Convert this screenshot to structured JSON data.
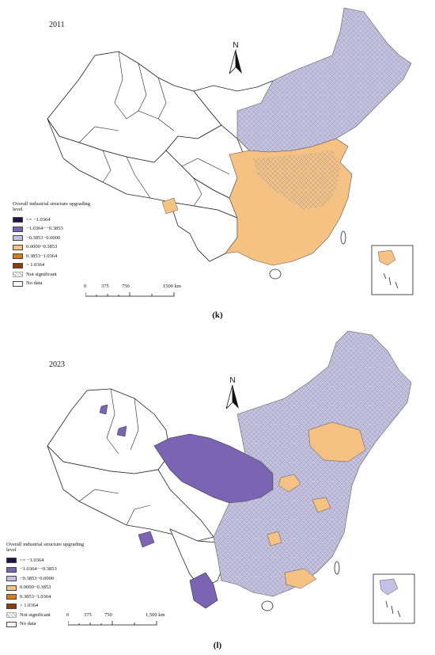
{
  "colors": {
    "c1": "#2a0f47",
    "c2": "#7b64b4",
    "c3": "#c5c1e4",
    "c4": "#f5c283",
    "c5": "#d97c1a",
    "c6": "#8a3c0c",
    "hatch": "#b4b4b4",
    "nodata": "#ffffff"
  },
  "panels": [
    {
      "year": "2011",
      "label": "(k)",
      "legend_title": "Overall industrial structure upgrading level",
      "legend_items": [
        {
          "label": "<= −1.0364",
          "color": "#2a0f47"
        },
        {
          "label": "−1.0364−−0.3853",
          "color": "#7b64b4"
        },
        {
          "label": "−0.3853−0.0000",
          "color": "#c5c1e4"
        },
        {
          "label": "0.0000−0.3853",
          "color": "#f5c283"
        },
        {
          "label": "0.3853−1.0364",
          "color": "#d97c1a"
        },
        {
          "label": "> 1.0364",
          "color": "#8a3c0c"
        },
        {
          "label": "Not significant",
          "color": "hatch"
        },
        {
          "label": "No data",
          "color": "#ffffff"
        }
      ],
      "north": "N",
      "scale": {
        "ticks": [
          "0",
          "375",
          "750",
          "1500 km"
        ]
      }
    },
    {
      "year": "2023",
      "label": "(l)",
      "legend_title": "Overall industrial structure upgrading level",
      "legend_items": [
        {
          "label": "<= −1.0364",
          "color": "#2a0f47"
        },
        {
          "label": "−1.0364−−0.3853",
          "color": "#7b64b4"
        },
        {
          "label": "−0.3853−0.0000",
          "color": "#c5c1e4"
        },
        {
          "label": "0.0000−0.3853",
          "color": "#f5c283"
        },
        {
          "label": "0.3853−1.0364",
          "color": "#d97c1a"
        },
        {
          "label": "> 1.0364",
          "color": "#8a3c0c"
        },
        {
          "label": "Not significant",
          "color": "hatch"
        },
        {
          "label": "No data",
          "color": "#ffffff"
        }
      ],
      "north": "N",
      "scale": {
        "ticks": [
          "0",
          "375",
          "750",
          "1,500 km"
        ]
      }
    }
  ]
}
